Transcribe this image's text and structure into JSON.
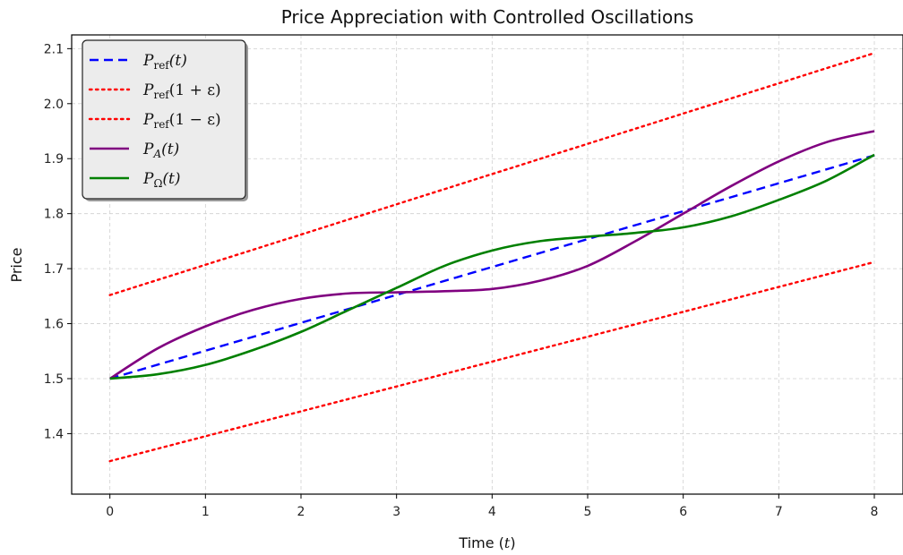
{
  "chart_data": {
    "type": "line",
    "title": "Price Appreciation with Controlled Oscillations",
    "xlabel": "Time (t)",
    "ylabel": "Price",
    "xlim": [
      -0.4,
      8.3
    ],
    "ylim": [
      1.29,
      2.125
    ],
    "xticks": [
      0,
      1,
      2,
      3,
      4,
      5,
      6,
      7,
      8
    ],
    "yticks": [
      1.4,
      1.5,
      1.6,
      1.7,
      1.8,
      1.9,
      2.0,
      2.1
    ],
    "grid": true,
    "legend_position": "top-left",
    "series": [
      {
        "name": "P_ref(t)",
        "legend": {
          "base": "P",
          "sub": "ref",
          "rest": "(t)"
        },
        "color": "#0000ff",
        "style": "dashed",
        "x": [
          0,
          8
        ],
        "y": [
          1.5,
          1.906
        ]
      },
      {
        "name": "P_ref(1 + ε)",
        "legend": {
          "base": "P",
          "sub": "ref",
          "rest": "(1 + ε)"
        },
        "color": "#ff0000",
        "style": "dotted",
        "x": [
          0,
          8
        ],
        "y": [
          1.652,
          2.092
        ]
      },
      {
        "name": "P_ref(1 − ε)",
        "legend": {
          "base": "P",
          "sub": "ref",
          "rest": "(1 − ε)"
        },
        "color": "#ff0000",
        "style": "dotted",
        "x": [
          0,
          8
        ],
        "y": [
          1.35,
          1.712
        ]
      },
      {
        "name": "P_A(t)",
        "legend": {
          "base": "P",
          "sub": "A",
          "rest": "(t)"
        },
        "color": "#800080",
        "style": "solid",
        "x": [
          0,
          0.5,
          1,
          1.5,
          2,
          2.5,
          3,
          3.5,
          4,
          4.5,
          5,
          5.5,
          6,
          6.5,
          7,
          7.5,
          8
        ],
        "y": [
          1.5,
          1.555,
          1.595,
          1.625,
          1.645,
          1.655,
          1.657,
          1.659,
          1.663,
          1.678,
          1.705,
          1.75,
          1.8,
          1.85,
          1.895,
          1.93,
          1.95
        ]
      },
      {
        "name": "P_Ω(t)",
        "legend": {
          "base": "P",
          "sub": "Ω",
          "rest": "(t)"
        },
        "color": "#008000",
        "style": "solid",
        "x": [
          0,
          0.5,
          1,
          1.5,
          2,
          2.5,
          3,
          3.5,
          4,
          4.5,
          5,
          5.5,
          6,
          6.5,
          7,
          7.5,
          8
        ],
        "y": [
          1.5,
          1.508,
          1.525,
          1.552,
          1.585,
          1.625,
          1.665,
          1.705,
          1.733,
          1.75,
          1.758,
          1.765,
          1.775,
          1.795,
          1.825,
          1.86,
          1.907
        ]
      }
    ]
  }
}
